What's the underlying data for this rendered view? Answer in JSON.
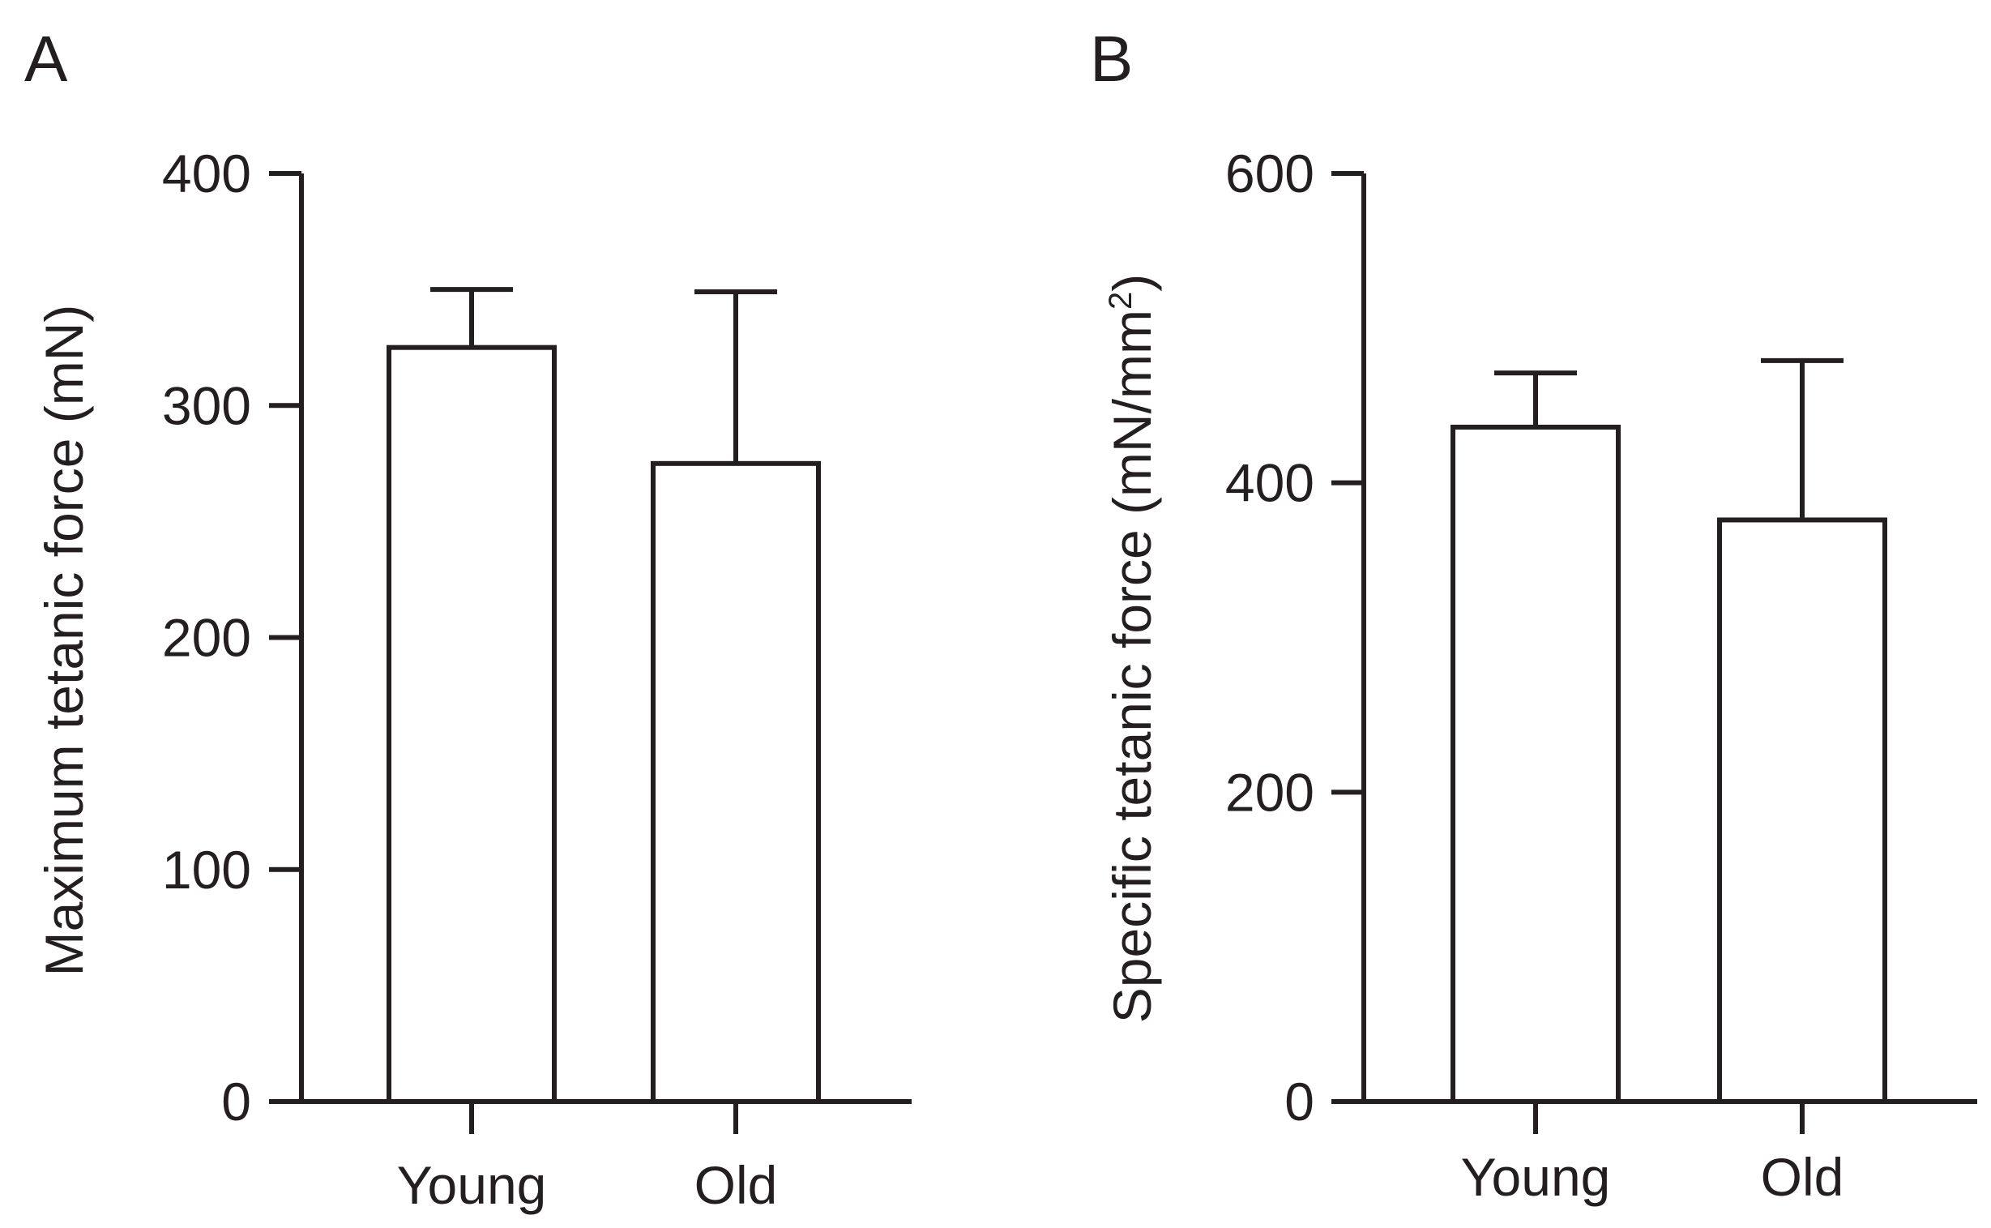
{
  "chart_data": [
    {
      "panel": "A",
      "type": "bar",
      "categories": [
        "Young",
        "Old"
      ],
      "values": [
        325,
        275
      ],
      "error_upper": [
        350,
        349
      ],
      "ylabel": "Maximum tetanic force (mN)",
      "ylim": [
        0,
        400
      ],
      "yticks": [
        0,
        100,
        200,
        300,
        400
      ],
      "ytick_labels": [
        "0",
        "100",
        "200",
        "300",
        "400"
      ],
      "xlabel": "",
      "grid": false,
      "bar_fill": "#ffffff",
      "line_color": "#231f20"
    },
    {
      "panel": "B",
      "type": "bar",
      "categories": [
        "Young",
        "Old"
      ],
      "values": [
        436,
        376
      ],
      "error_upper": [
        471,
        479
      ],
      "ylabel": "Specific tetanic force (mN/mm",
      "ylabel_superscript": "2",
      "ylabel_suffix": ")",
      "ylim": [
        0,
        600
      ],
      "yticks": [
        0,
        200,
        400,
        600
      ],
      "ytick_labels": [
        "0",
        "200",
        "400",
        "600"
      ],
      "xlabel": "",
      "grid": false,
      "bar_fill": "#ffffff",
      "line_color": "#231f20"
    }
  ]
}
